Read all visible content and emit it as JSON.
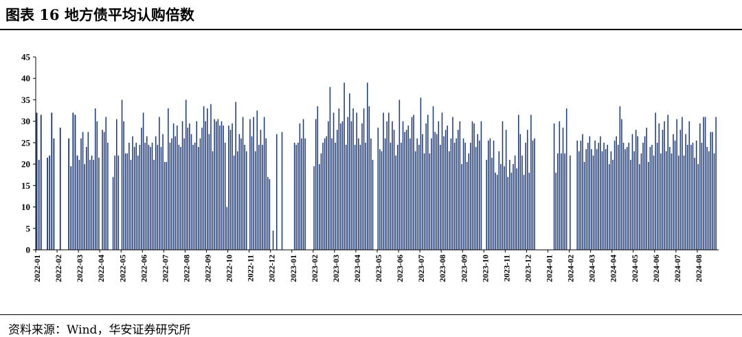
{
  "header": {
    "title": "图表 16 地方债平均认购倍数"
  },
  "footer": {
    "source": "资料来源：Wind，华安证券研究所"
  },
  "colors": {
    "bar": "#1f3a7a",
    "axis": "#000000",
    "rule": "#000000"
  },
  "chart_data": {
    "type": "bar",
    "title": "",
    "xlabel": "",
    "ylabel": "",
    "ylim": [
      0,
      45
    ],
    "yticks": [
      0,
      5,
      10,
      15,
      20,
      25,
      30,
      35,
      40,
      45
    ],
    "grid": false,
    "legend": "none",
    "x_tick_labels": [
      "2022-01",
      "2022-02",
      "2022-03",
      "2022-04",
      "2022-05",
      "2022-06",
      "2022-07",
      "2022-08",
      "2022-09",
      "2022-10",
      "2022-11",
      "2022-12",
      "2023-01",
      "2023-02",
      "2023-03",
      "2023-04",
      "2023-05",
      "2023-06",
      "2023-07",
      "2023-08",
      "2023-09",
      "2023-10",
      "2023-11",
      "2023-12",
      "2024-01",
      "2024-02",
      "2024-03",
      "2024-04",
      "2024-05",
      "2024-06",
      "2024-07",
      "2024-08"
    ],
    "months": [
      {
        "month": "2022-01",
        "values": [
          32,
          21,
          31.5,
          0,
          0,
          21.5,
          22,
          32,
          26,
          0
        ]
      },
      {
        "month": "2022-02",
        "values": [
          0,
          28.5,
          0,
          0,
          0,
          26,
          19.5,
          32,
          31.5,
          22
        ]
      },
      {
        "month": "2022-03",
        "values": [
          21,
          26,
          27.5,
          20,
          24,
          27.5,
          21,
          22,
          21,
          33,
          30,
          21.5
        ]
      },
      {
        "month": "2022-04",
        "values": [
          0,
          28,
          27.5,
          31,
          25,
          0,
          0,
          17,
          22,
          30.5,
          22,
          0
        ]
      },
      {
        "month": "2022-05",
        "values": [
          35,
          30,
          22.5,
          22.5,
          25,
          21,
          26.5,
          24,
          25,
          22,
          24.5,
          28.5
        ]
      },
      {
        "month": "2022-06",
        "values": [
          32,
          25,
          26.5,
          24.5,
          24,
          25,
          21,
          26.5,
          24.5,
          31,
          24,
          27
        ]
      },
      {
        "month": "2022-07",
        "values": [
          20.5,
          20.5,
          33,
          25,
          26,
          29.5,
          26.5,
          29,
          24.5,
          24,
          30,
          26
        ]
      },
      {
        "month": "2022-08",
        "values": [
          35,
          28.5,
          29.5,
          27,
          24.5,
          25,
          30,
          24,
          26,
          28.5,
          33.5,
          30
        ]
      },
      {
        "month": "2022-09",
        "values": [
          33,
          27,
          34,
          23,
          30.5,
          30,
          30.5,
          29,
          30,
          29,
          25,
          10
        ]
      },
      {
        "month": "2022-10",
        "values": [
          29,
          28,
          29.5,
          22,
          34.5,
          23,
          27,
          26,
          31,
          24.5,
          23,
          0
        ]
      },
      {
        "month": "2022-11",
        "values": [
          30.5,
          26.5,
          31,
          23,
          32.5,
          24.5,
          28,
          24.5,
          31,
          26,
          17,
          16.5
        ]
      },
      {
        "month": "2022-12",
        "values": [
          0,
          4.5,
          0,
          27,
          0,
          0,
          27.5,
          0,
          0,
          0,
          0,
          0
        ]
      },
      {
        "month": "2023-01",
        "values": [
          0,
          25,
          24.5,
          25,
          29.5,
          26,
          30.5,
          26,
          0,
          0,
          0,
          0
        ]
      },
      {
        "month": "2023-02",
        "values": [
          19.5,
          30.5,
          33.5,
          20,
          22.5,
          25,
          26,
          26.5,
          30,
          38,
          26,
          32
        ]
      },
      {
        "month": "2023-03",
        "values": [
          25,
          28,
          33,
          29.5,
          30,
          39,
          24.5,
          31,
          36.5,
          30,
          33,
          24.5
        ]
      },
      {
        "month": "2023-04",
        "values": [
          32,
          26,
          24.5,
          29.5,
          33,
          25,
          39,
          33.5,
          26,
          21,
          0,
          0
        ]
      },
      {
        "month": "2023-05",
        "values": [
          28.5,
          23.5,
          23,
          32,
          26,
          30,
          32,
          25,
          30,
          28,
          22,
          24.5
        ]
      },
      {
        "month": "2023-06",
        "values": [
          35,
          25,
          30,
          27.5,
          28,
          29,
          26,
          31,
          31.5,
          23,
          26,
          24.5
        ]
      },
      {
        "month": "2023-07",
        "values": [
          35.5,
          27,
          22.5,
          29.5,
          31.5,
          22.5,
          26,
          33.5,
          27.5,
          27,
          30,
          24.5
        ]
      },
      {
        "month": "2023-08",
        "values": [
          32,
          26.5,
          28,
          29,
          23,
          26,
          31,
          25,
          26,
          28,
          30,
          20
        ]
      },
      {
        "month": "2023-09",
        "values": [
          26,
          25,
          20.5,
          22.5,
          25,
          30,
          29.5,
          24,
          27,
          25.5,
          30,
          0
        ]
      },
      {
        "month": "2023-10",
        "values": [
          0,
          21,
          25.5,
          26,
          21.5,
          25.5,
          18,
          17.5,
          23,
          20,
          30,
          19.5
        ]
      },
      {
        "month": "2023-11",
        "values": [
          28,
          17,
          21,
          18,
          20,
          22,
          19,
          31.5,
          27,
          22,
          17.5,
          25
        ]
      },
      {
        "month": "2023-12",
        "values": [
          28,
          18,
          31.5,
          25.5,
          26,
          0,
          0,
          0,
          0,
          0,
          0,
          0
        ]
      },
      {
        "month": "2024-01",
        "values": [
          0,
          0,
          0,
          29.5,
          18,
          22.5,
          30,
          22.5,
          28.5,
          22.5,
          33,
          0
        ]
      },
      {
        "month": "2024-02",
        "values": [
          22,
          0,
          0,
          0,
          25.5,
          23,
          25.5,
          27,
          20.5,
          23.5,
          25,
          26.5
        ]
      },
      {
        "month": "2024-03",
        "values": [
          23.5,
          22,
          25.5,
          23.5,
          25,
          26.5,
          23,
          25,
          23.5,
          24.5,
          20,
          23
        ]
      },
      {
        "month": "2024-04",
        "values": [
          21,
          25.5,
          26.5,
          24.5,
          33.5,
          30.5,
          25,
          23.5,
          24,
          25,
          21,
          27
        ]
      },
      {
        "month": "2024-05",
        "values": [
          23,
          28,
          26.5,
          20,
          22.5,
          25,
          26.5,
          28.5,
          20.5,
          24,
          24.5,
          22
        ]
      },
      {
        "month": "2024-06",
        "values": [
          32,
          25,
          29.5,
          22.5,
          28,
          30,
          23,
          31.5,
          24,
          22.5,
          27,
          25.5
        ]
      },
      {
        "month": "2024-07",
        "values": [
          30.5,
          22,
          28,
          31,
          22,
          27,
          24.5,
          30,
          24.5,
          25,
          21.5,
          25.5
        ]
      },
      {
        "month": "2024-08",
        "values": [
          20,
          29.5,
          25,
          31,
          31,
          24,
          23,
          27.5,
          27.5,
          22.5,
          31,
          0
        ]
      }
    ]
  }
}
